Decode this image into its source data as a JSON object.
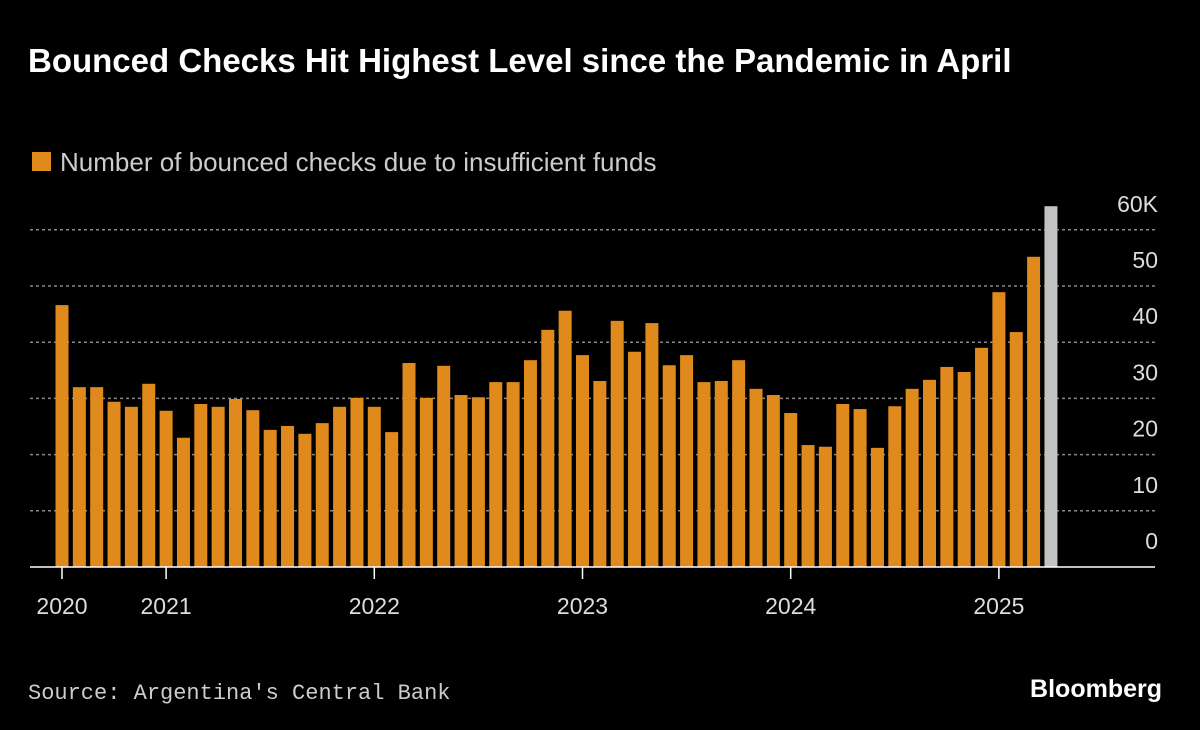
{
  "chart_data": {
    "type": "bar",
    "title": "Bounced Checks Hit Highest Level since the Pandemic in April",
    "source": "Source: Argentina's Central Bank",
    "logo": "Bloomberg",
    "categories": [
      "2020",
      null,
      null,
      null,
      null,
      null,
      "2021",
      null,
      null,
      null,
      null,
      null,
      null,
      null,
      null,
      null,
      null,
      null,
      "2022",
      null,
      null,
      null,
      null,
      null,
      null,
      null,
      null,
      null,
      null,
      null,
      "2023",
      null,
      null,
      null,
      null,
      null,
      null,
      null,
      null,
      null,
      null,
      null,
      "2024",
      null,
      null,
      null,
      null,
      null,
      null,
      null,
      null,
      null,
      null,
      null,
      "2025",
      null,
      null,
      null
    ],
    "series": [
      {
        "name": "Number of bounced checks due to insufficient funds",
        "color": "#e08a1e",
        "values": [
          46.6,
          32.0,
          32.0,
          29.4,
          28.5,
          32.6,
          27.8,
          23.0,
          29.0,
          28.5,
          29.9,
          27.9,
          24.4,
          25.1,
          23.7,
          25.6,
          28.5,
          30.1,
          28.5,
          24.0,
          36.3,
          30.1,
          35.8,
          30.6,
          30.2,
          32.9,
          32.9,
          36.8,
          42.2,
          45.6,
          37.7,
          33.1,
          43.8,
          38.3,
          43.4,
          35.9,
          37.7,
          32.9,
          33.1,
          36.8,
          31.7,
          30.6,
          27.4,
          21.7,
          21.4,
          29.0,
          28.1,
          21.2,
          28.6,
          31.7,
          33.3,
          35.6,
          34.7,
          39.0,
          48.9,
          41.8,
          55.2,
          64.2
        ],
        "colors": [
          "#e08a1e",
          "#e08a1e",
          "#e08a1e",
          "#e08a1e",
          "#e08a1e",
          "#e08a1e",
          "#e08a1e",
          "#e08a1e",
          "#e08a1e",
          "#e08a1e",
          "#e08a1e",
          "#e08a1e",
          "#e08a1e",
          "#e08a1e",
          "#e08a1e",
          "#e08a1e",
          "#e08a1e",
          "#e08a1e",
          "#e08a1e",
          "#e08a1e",
          "#e08a1e",
          "#e08a1e",
          "#e08a1e",
          "#e08a1e",
          "#e08a1e",
          "#e08a1e",
          "#e08a1e",
          "#e08a1e",
          "#e08a1e",
          "#e08a1e",
          "#e08a1e",
          "#e08a1e",
          "#e08a1e",
          "#e08a1e",
          "#e08a1e",
          "#e08a1e",
          "#e08a1e",
          "#e08a1e",
          "#e08a1e",
          "#e08a1e",
          "#e08a1e",
          "#e08a1e",
          "#e08a1e",
          "#e08a1e",
          "#e08a1e",
          "#e08a1e",
          "#e08a1e",
          "#e08a1e",
          "#e08a1e",
          "#e08a1e",
          "#e08a1e",
          "#e08a1e",
          "#e08a1e",
          "#e08a1e",
          "#e08a1e",
          "#e08a1e",
          "#e08a1e",
          "#c2c2c2"
        ]
      }
    ],
    "ylim": [
      0,
      64.2
    ],
    "yticks": [
      0,
      10,
      20,
      30,
      40,
      50,
      {
        "value": 60,
        "label": "60K"
      }
    ],
    "grid": true
  }
}
